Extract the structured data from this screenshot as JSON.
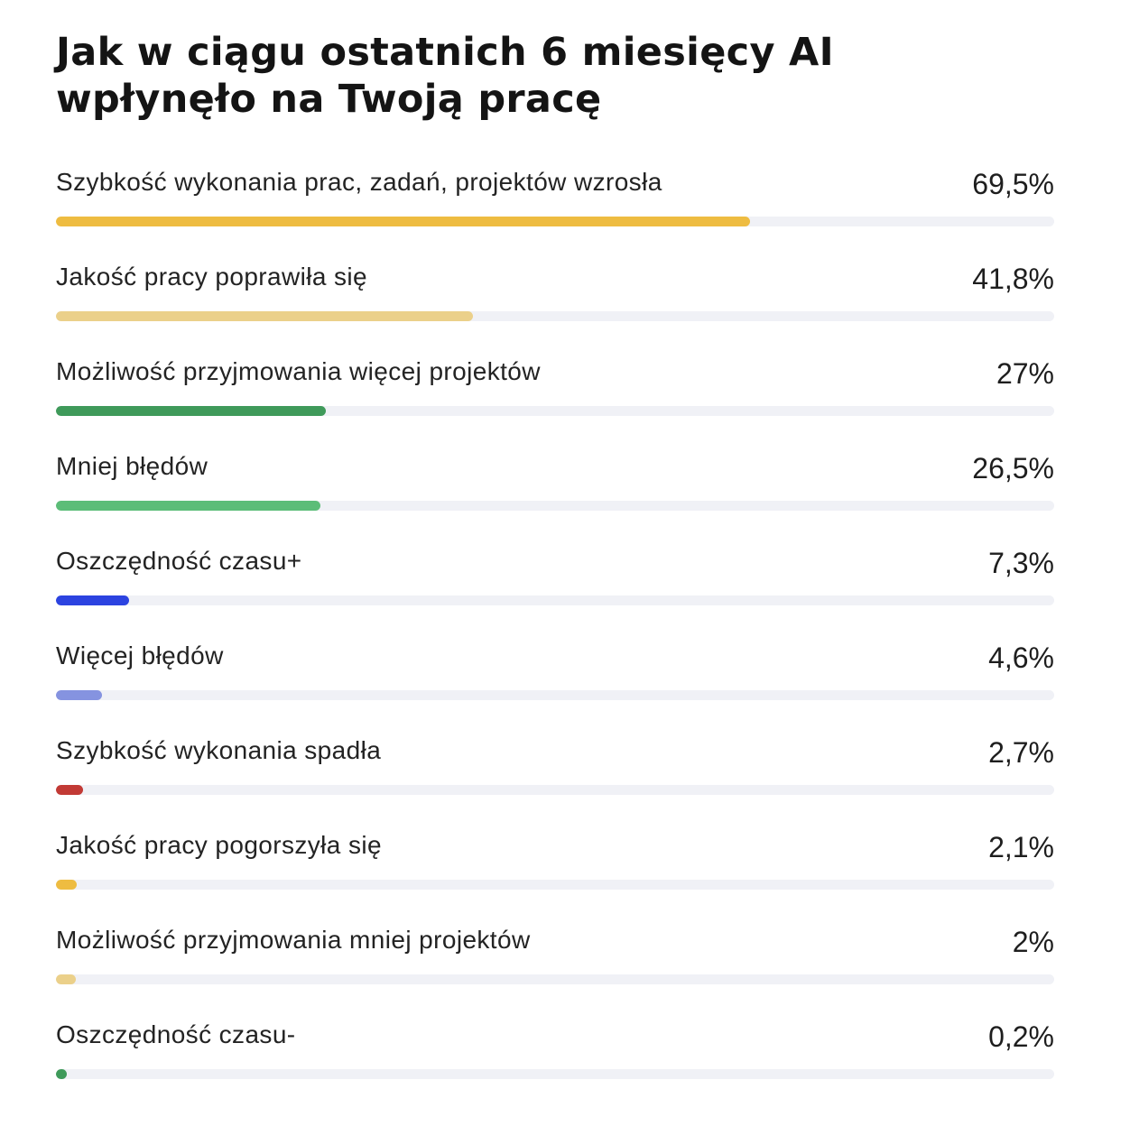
{
  "chart_data": {
    "type": "bar",
    "orientation": "horizontal",
    "title": "Jak w ciągu ostatnich 6 miesięcy AI\nwpłynęło na Twoją pracę",
    "xlim": [
      0,
      100
    ],
    "unit": "%",
    "grid": false,
    "legend": "none",
    "categories": [
      "Szybkość wykonania prac, zadań, projektów wzrosła",
      "Jakość pracy poprawiła się",
      "Możliwość przyjmowania więcej projektów",
      "Mniej błędów",
      "Oszczędność czasu+",
      "Więcej błędów",
      "Szybkość wykonania spadła",
      "Jakość pracy pogorszyła się",
      "Możliwość przyjmowania mniej projektów",
      "Oszczędność czasu-"
    ],
    "values": [
      69.5,
      41.8,
      27,
      26.5,
      7.3,
      4.6,
      2.7,
      2.1,
      2,
      0.2
    ],
    "value_labels": [
      "69,5%",
      "41,8%",
      "27%",
      "26,5%",
      "7,3%",
      "4,6%",
      "2,7%",
      "2,1%",
      "2%",
      "0,2%"
    ],
    "colors": [
      "#eebc41",
      "#ebd08a",
      "#3f9a5a",
      "#5cbd78",
      "#2c43e0",
      "#8593e0",
      "#c23a35",
      "#eebc41",
      "#ebd08a",
      "#3f9a5a"
    ],
    "track_color": "#f0f1f6"
  }
}
